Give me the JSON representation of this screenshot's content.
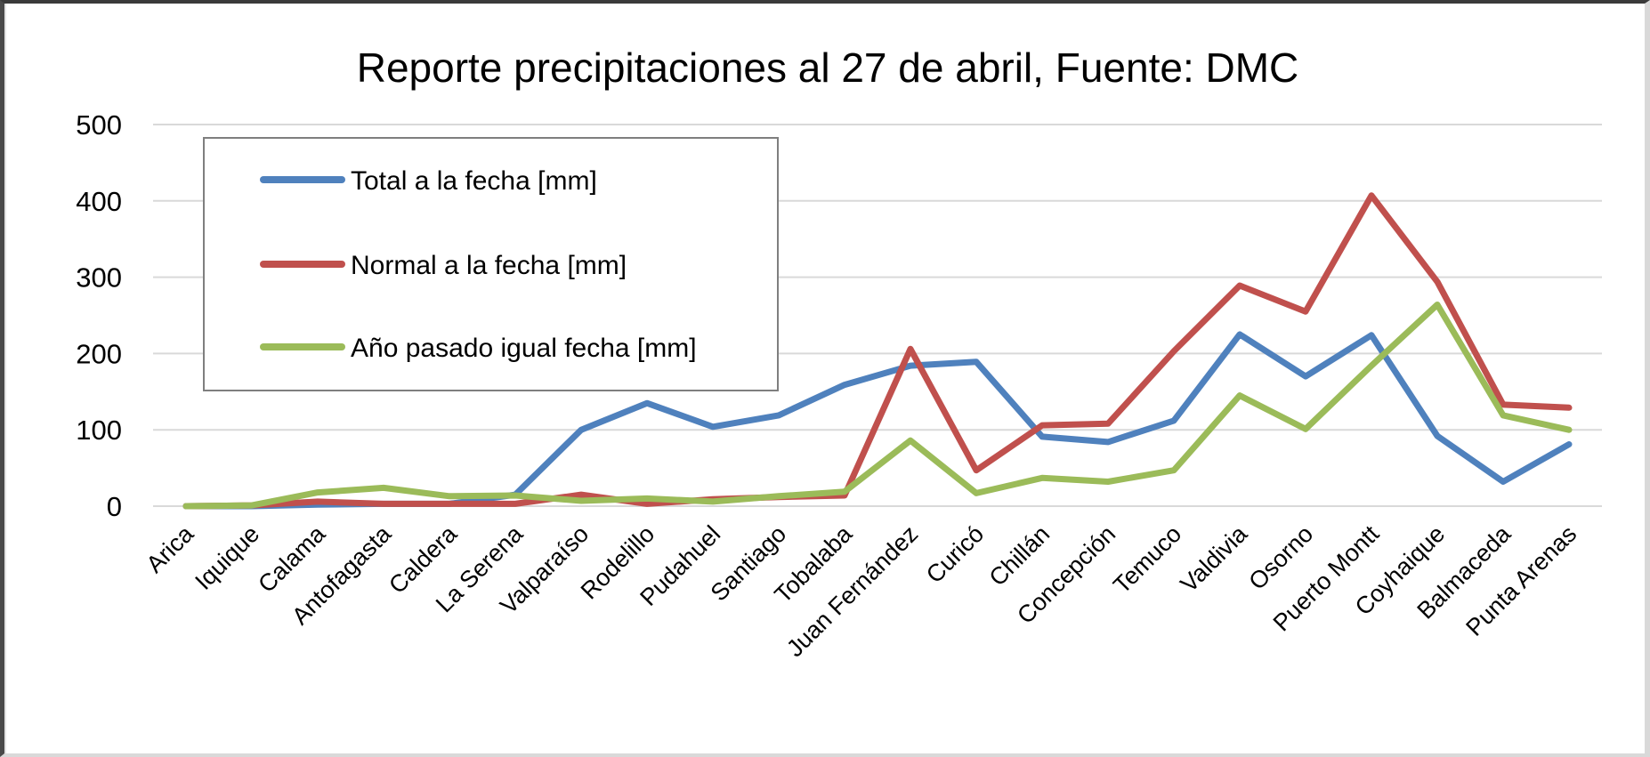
{
  "chart_data": {
    "type": "line",
    "title": "Reporte precipitaciones al 27 de abril, Fuente: DMC",
    "xlabel": "",
    "ylabel": "",
    "ylim": [
      0,
      500
    ],
    "yticks": [
      0,
      100,
      200,
      300,
      400,
      500
    ],
    "grid": true,
    "legend_position": "upper-left (inside plot)",
    "categories": [
      "Arica",
      "Iquique",
      "Calama",
      "Antofagasta",
      "Caldera",
      "La Serena",
      "Valparaíso",
      "Rodelillo",
      "Pudahuel",
      "Santiago",
      "Tobalaba",
      "Juan Fernández",
      "Curicó",
      "Chillán",
      "Concepción",
      "Temuco",
      "Valdivia",
      "Osorno",
      "Puerto Montt",
      "Coyhaique",
      "Balmaceda",
      "Punta Arenas"
    ],
    "series": [
      {
        "name": "Total a la fecha [mm]",
        "color": "#4F81BD",
        "values": [
          0,
          0,
          2,
          3,
          3,
          15,
          100,
          135,
          104,
          119,
          159,
          184,
          189,
          91,
          84,
          112,
          225,
          170,
          224,
          92,
          32,
          81
        ]
      },
      {
        "name": "Normal a la fecha [mm]",
        "color": "#C0504D",
        "values": [
          0,
          1,
          6,
          3,
          3,
          3,
          15,
          3,
          9,
          12,
          14,
          206,
          47,
          106,
          108,
          203,
          289,
          255,
          407,
          294,
          133,
          129
        ]
      },
      {
        "name": "Año pasado igual fecha [mm]",
        "color": "#9BBB59",
        "values": [
          0,
          1,
          18,
          24,
          13,
          14,
          7,
          10,
          6,
          13,
          19,
          86,
          17,
          37,
          32,
          47,
          145,
          101,
          184,
          264,
          119,
          100
        ]
      }
    ]
  },
  "colors": {
    "gridline": "#D9D9D9",
    "legend_border": "#7F7F7F",
    "text": "#000000"
  }
}
